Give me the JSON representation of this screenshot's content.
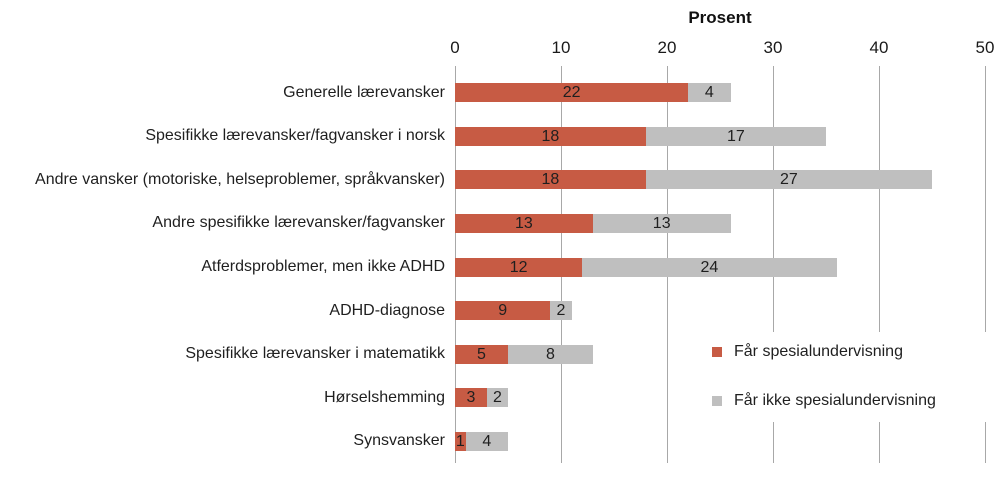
{
  "title": "Prosent",
  "chart_data": {
    "type": "bar",
    "orientation": "horizontal",
    "stacked": true,
    "title": "Prosent",
    "categories": [
      "Generelle lærevansker",
      "Spesifikke lærevansker/fagvansker i norsk",
      "Andre vansker (motoriske, helseproblemer, språkvansker)",
      "Andre spesifikke lærevansker/fagvansker",
      "Atferdsproblemer, men ikke ADHD",
      "ADHD-diagnose",
      "Spesifikke lærevansker i matematikk",
      "Hørselshemming",
      "Synsvansker"
    ],
    "series": [
      {
        "name": "Får spesialundervisning",
        "color": "#C75B44",
        "values": [
          22,
          18,
          18,
          13,
          12,
          9,
          5,
          3,
          1
        ]
      },
      {
        "name": "Får ikke spesialundervisning",
        "color": "#BFBFBF",
        "values": [
          4,
          17,
          27,
          13,
          24,
          2,
          8,
          2,
          4
        ]
      }
    ],
    "totals": [
      26,
      35,
      45,
      26,
      36,
      11,
      13,
      5,
      5
    ],
    "xlim": [
      0,
      50
    ],
    "xticks": [
      0,
      10,
      20,
      30,
      40,
      50
    ],
    "xlabel": "Prosent",
    "ylabel": "",
    "grid": "vertical-gridlines",
    "legend_position": "inside-bottom-right",
    "value_labels": "inside-center"
  },
  "colors": {
    "series_far_spesialundervisning": "#C75B44",
    "series_far_ikke_spesialundervisning": "#BFBFBF",
    "gridline": "#A8A8A8",
    "text": "#1F1F1F",
    "background": "#FFFFFF"
  }
}
